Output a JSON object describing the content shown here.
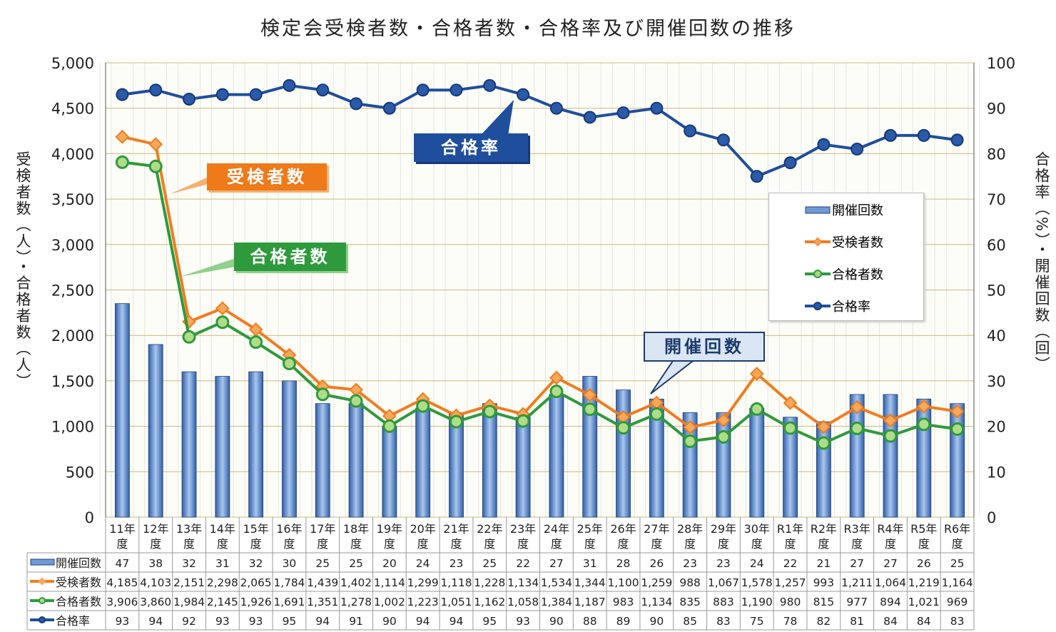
{
  "chart_data": {
    "type": "bar+line",
    "title": "検定会受検者数・合格者数・合格率及び開催回数の推移",
    "ylabel_left": "受検者数（人）・合格者数（人）",
    "ylabel_right": "合格率（%）・開催回数（回）",
    "ylim_left": [
      0,
      5000
    ],
    "ylim_right": [
      0,
      100
    ],
    "left_ticks": [
      "0",
      "500",
      "1,000",
      "1,500",
      "2,000",
      "2,500",
      "3,000",
      "3,500",
      "4,000",
      "4,500",
      "5,000"
    ],
    "right_ticks": [
      "0",
      "10",
      "20",
      "30",
      "40",
      "50",
      "60",
      "70",
      "80",
      "90",
      "100"
    ],
    "categories": [
      [
        "11年",
        "度"
      ],
      [
        "12年",
        "度"
      ],
      [
        "13年",
        "度"
      ],
      [
        "14年",
        "度"
      ],
      [
        "15年",
        "度"
      ],
      [
        "16年",
        "度"
      ],
      [
        "17年",
        "度"
      ],
      [
        "18年",
        "度"
      ],
      [
        "19年",
        "度"
      ],
      [
        "20年",
        "度"
      ],
      [
        "21年",
        "度"
      ],
      [
        "22年",
        "度"
      ],
      [
        "23年",
        "度"
      ],
      [
        "24年",
        "度"
      ],
      [
        "25年",
        "度"
      ],
      [
        "26年",
        "度"
      ],
      [
        "27年",
        "度"
      ],
      [
        "28年",
        "度"
      ],
      [
        "29年",
        "度"
      ],
      [
        "30年",
        "度"
      ],
      [
        "R1年",
        "度"
      ],
      [
        "R2年",
        "度"
      ],
      [
        "R3年",
        "度"
      ],
      [
        "R4年",
        "度"
      ],
      [
        "R5年",
        "度"
      ],
      [
        "R6年",
        "度"
      ]
    ],
    "series": [
      {
        "name": "開催回数",
        "type": "bar",
        "axis": "right",
        "color": "#4a7cc4",
        "values": [
          47,
          38,
          32,
          31,
          32,
          30,
          25,
          25,
          20,
          24,
          23,
          25,
          22,
          27,
          31,
          28,
          26,
          23,
          23,
          24,
          22,
          21,
          27,
          27,
          26,
          25
        ],
        "labels": [
          "47",
          "38",
          "32",
          "31",
          "32",
          "30",
          "25",
          "25",
          "20",
          "24",
          "23",
          "25",
          "22",
          "27",
          "31",
          "28",
          "26",
          "23",
          "23",
          "24",
          "22",
          "21",
          "27",
          "27",
          "26",
          "25"
        ]
      },
      {
        "name": "受検者数",
        "type": "line",
        "axis": "left",
        "color": "#f07c1e",
        "values": [
          4185,
          4103,
          2151,
          2298,
          2065,
          1784,
          1439,
          1402,
          1114,
          1299,
          1118,
          1228,
          1134,
          1534,
          1344,
          1100,
          1259,
          988,
          1067,
          1578,
          1257,
          993,
          1211,
          1064,
          1219,
          1164
        ],
        "labels": [
          "4,185",
          "4,103",
          "2,151",
          "2,298",
          "2,065",
          "1,784",
          "1,439",
          "1,402",
          "1,114",
          "1,299",
          "1,118",
          "1,228",
          "1,134",
          "1,534",
          "1,344",
          "1,100",
          "1,259",
          "988",
          "1,067",
          "1,578",
          "1,257",
          "993",
          "1,211",
          "1,064",
          "1,219",
          "1,164"
        ]
      },
      {
        "name": "合格者数",
        "type": "line",
        "axis": "left",
        "color": "#2e9a3c",
        "values": [
          3906,
          3860,
          1984,
          2145,
          1926,
          1691,
          1351,
          1278,
          1002,
          1223,
          1051,
          1162,
          1058,
          1384,
          1187,
          983,
          1134,
          835,
          883,
          1190,
          980,
          815,
          977,
          894,
          1021,
          969
        ],
        "labels": [
          "3,906",
          "3,860",
          "1,984",
          "2,145",
          "1,926",
          "1,691",
          "1,351",
          "1,278",
          "1,002",
          "1,223",
          "1,051",
          "1,162",
          "1,058",
          "1,384",
          "1,187",
          "983",
          "1,134",
          "835",
          "883",
          "1,190",
          "980",
          "815",
          "977",
          "894",
          "1,021",
          "969"
        ]
      },
      {
        "name": "合格率",
        "type": "line",
        "axis": "right",
        "color": "#1f4e9c",
        "values": [
          93,
          94,
          92,
          93,
          93,
          95,
          94,
          91,
          90,
          94,
          94,
          95,
          93,
          90,
          88,
          89,
          90,
          85,
          83,
          75,
          78,
          82,
          81,
          84,
          84,
          83
        ],
        "labels": [
          "93",
          "94",
          "92",
          "93",
          "93",
          "95",
          "94",
          "91",
          "90",
          "94",
          "94",
          "95",
          "93",
          "90",
          "88",
          "89",
          "90",
          "85",
          "83",
          "75",
          "78",
          "82",
          "81",
          "84",
          "84",
          "83"
        ]
      }
    ],
    "legend": [
      "開催回数",
      "受検者数",
      "合格者数",
      "合格率"
    ],
    "legend_position": "right-middle",
    "callouts": {
      "rate": "合格率",
      "exam": "受検者数",
      "pass": "合格者数",
      "sessions": "開催回数"
    }
  }
}
